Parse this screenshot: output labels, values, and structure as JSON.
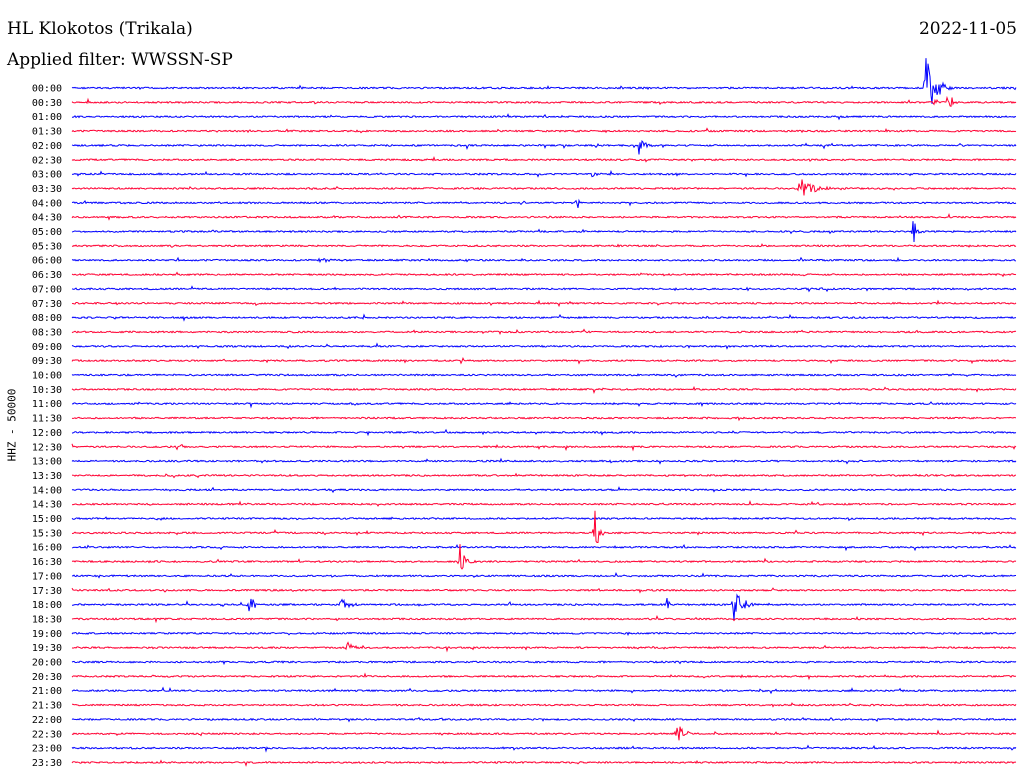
{
  "header": {
    "station": "HL Klokotos (Trikala)",
    "date": "2022-11-05",
    "filter": "Applied filter: WWSSN-SP"
  },
  "channel_label": "HHZ - 50000",
  "colors": {
    "even": "#0000ff",
    "odd": "#ff0033"
  },
  "rows": [
    "00:00",
    "00:30",
    "01:00",
    "01:30",
    "02:00",
    "02:30",
    "03:00",
    "03:30",
    "04:00",
    "04:30",
    "05:00",
    "05:30",
    "06:00",
    "06:30",
    "07:00",
    "07:30",
    "08:00",
    "08:30",
    "09:00",
    "09:30",
    "10:00",
    "10:30",
    "11:00",
    "11:30",
    "12:00",
    "12:30",
    "13:00",
    "13:30",
    "14:00",
    "14:30",
    "15:00",
    "15:30",
    "16:00",
    "16:30",
    "17:00",
    "17:30",
    "18:00",
    "18:30",
    "19:00",
    "19:30",
    "20:00",
    "20:30",
    "21:00",
    "21:30",
    "22:00",
    "22:30",
    "23:00",
    "23:30"
  ],
  "events": [
    {
      "row": 0,
      "minute": 27.1,
      "amp": 42,
      "dur": 0.9
    },
    {
      "row": 1,
      "minute": 27.8,
      "amp": 9,
      "dur": 0.8
    },
    {
      "row": 4,
      "minute": 18.0,
      "amp": 11,
      "dur": 0.5
    },
    {
      "row": 5,
      "minute": 15.2,
      "amp": 4,
      "dur": 0.3
    },
    {
      "row": 6,
      "minute": 16.5,
      "amp": 4,
      "dur": 0.4
    },
    {
      "row": 7,
      "minute": 7.5,
      "amp": 6,
      "dur": 0.2
    },
    {
      "row": 7,
      "minute": 23.1,
      "amp": 11,
      "dur": 1.4
    },
    {
      "row": 8,
      "minute": 16.0,
      "amp": 13,
      "dur": 0.3
    },
    {
      "row": 10,
      "minute": 26.7,
      "amp": 22,
      "dur": 0.5
    },
    {
      "row": 12,
      "minute": 7.8,
      "amp": 4,
      "dur": 0.9
    },
    {
      "row": 15,
      "minute": 5.8,
      "amp": 4,
      "dur": 0.2
    },
    {
      "row": 15,
      "minute": 14.8,
      "amp": 4,
      "dur": 0.2
    },
    {
      "row": 22,
      "minute": 8.9,
      "amp": 3,
      "dur": 0.5
    },
    {
      "row": 31,
      "minute": 16.6,
      "amp": 38,
      "dur": 0.4
    },
    {
      "row": 33,
      "minute": 12.3,
      "amp": 24,
      "dur": 0.6
    },
    {
      "row": 36,
      "minute": 5.6,
      "amp": 14,
      "dur": 0.5
    },
    {
      "row": 36,
      "minute": 8.5,
      "amp": 10,
      "dur": 0.7
    },
    {
      "row": 36,
      "minute": 18.9,
      "amp": 8,
      "dur": 0.3
    },
    {
      "row": 36,
      "minute": 21.0,
      "amp": 26,
      "dur": 0.8
    },
    {
      "row": 39,
      "minute": 8.7,
      "amp": 6,
      "dur": 1.1
    },
    {
      "row": 41,
      "minute": 21.2,
      "amp": 5,
      "dur": 0.2
    },
    {
      "row": 44,
      "minute": 11.7,
      "amp": 3,
      "dur": 0.2
    },
    {
      "row": 45,
      "minute": 19.2,
      "amp": 16,
      "dur": 0.6
    }
  ]
}
